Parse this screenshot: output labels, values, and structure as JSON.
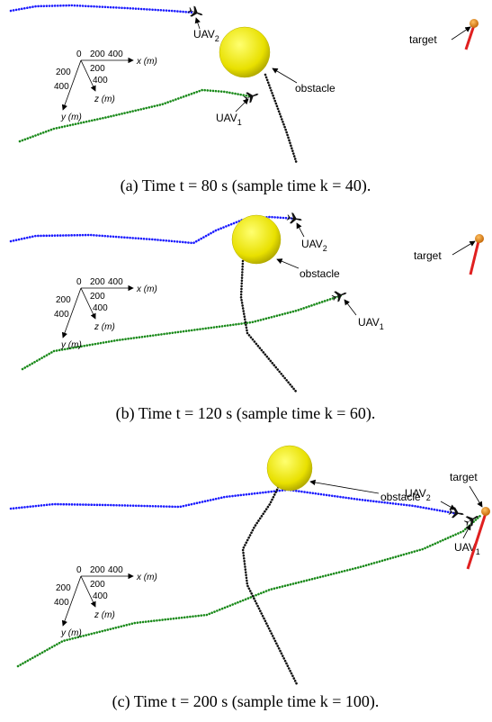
{
  "panels": [
    {
      "caption": "(a)  Time t = 80 s (sample time k = 40).",
      "axes": {
        "origin": "0",
        "x_ticks": [
          "200",
          "400"
        ],
        "x_label": "x (m)",
        "y_ticks": [
          "200",
          "400"
        ],
        "y_label": "y (m)",
        "z_ticks": [
          "200",
          "400"
        ],
        "z_label": "z (m)"
      },
      "uav1": {
        "name": "UAV",
        "sub": "1"
      },
      "uav2": {
        "name": "UAV",
        "sub": "2"
      },
      "obstacle": "obstacle",
      "target": "target"
    },
    {
      "caption": "(b)  Time t = 120 s (sample time k = 60).",
      "axes": {
        "origin": "0",
        "x_ticks": [
          "200",
          "400"
        ],
        "x_label": "x (m)",
        "y_ticks": [
          "200",
          "400"
        ],
        "y_label": "y (m)",
        "z_ticks": [
          "200",
          "400"
        ],
        "z_label": "z (m)"
      },
      "uav1": {
        "name": "UAV",
        "sub": "1"
      },
      "uav2": {
        "name": "UAV",
        "sub": "2"
      },
      "obstacle": "obstacle",
      "target": "target"
    },
    {
      "caption": "(c)  Time t = 200 s (sample time k = 100).",
      "axes": {
        "origin": "0",
        "x_ticks": [
          "200",
          "400"
        ],
        "x_label": "x (m)",
        "y_ticks": [
          "200",
          "400"
        ],
        "y_label": "y (m)",
        "z_ticks": [
          "200",
          "400"
        ],
        "z_label": "z (m)"
      },
      "uav1": {
        "name": "UAV",
        "sub": "1"
      },
      "uav2": {
        "name": "UAV",
        "sub": "2"
      },
      "obstacle": "obstacle",
      "target": "target"
    }
  ]
}
